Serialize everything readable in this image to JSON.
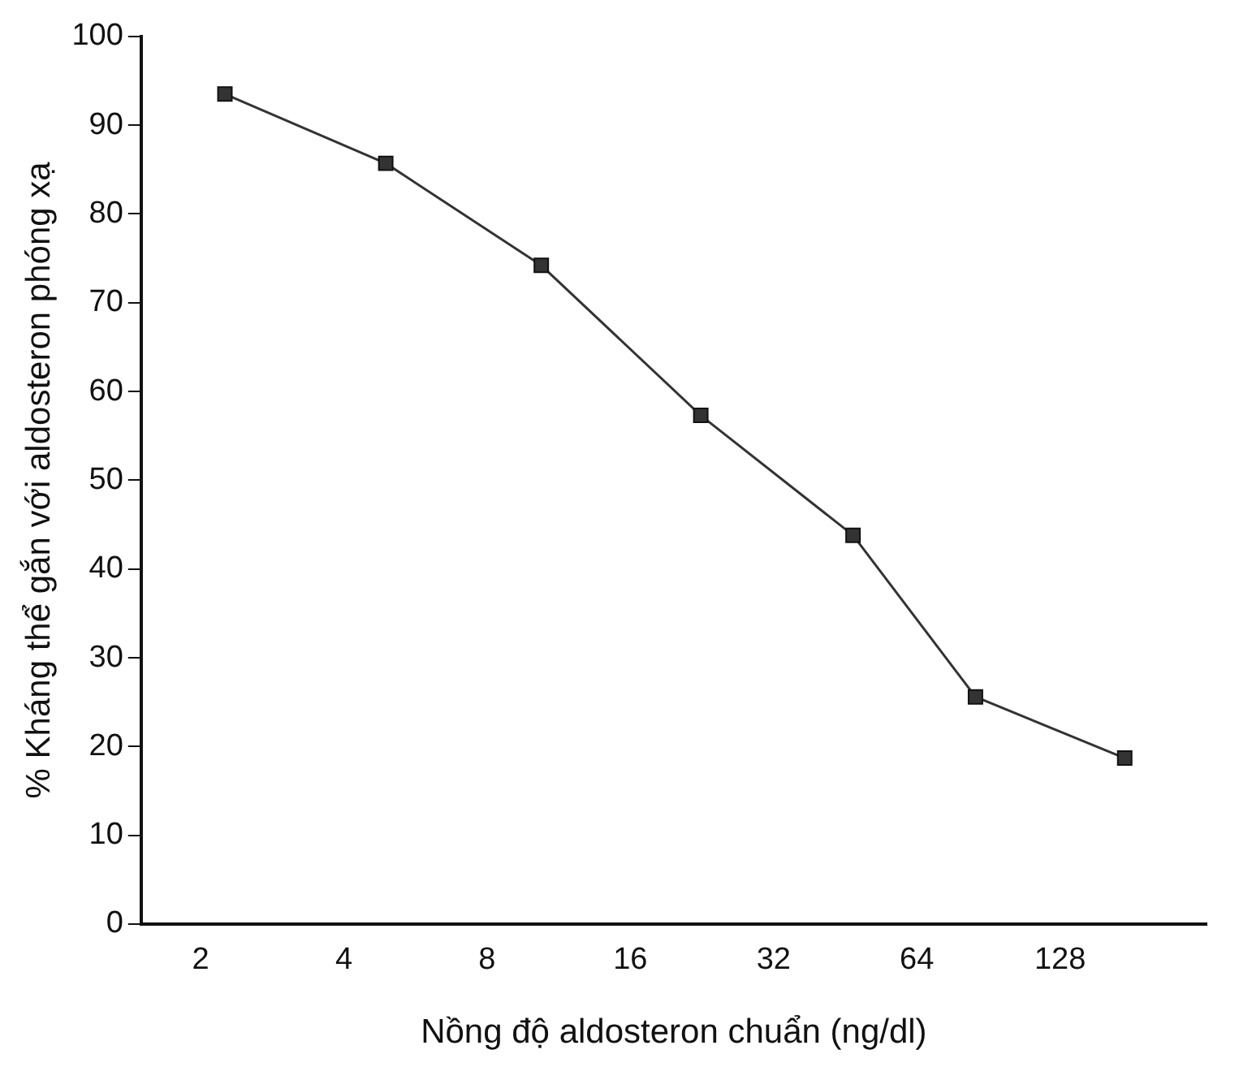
{
  "chart_data": {
    "type": "line",
    "xlabel": "Nồng độ aldosteron chuẩn (ng/dl)",
    "ylabel": "% Kháng thể gắn với aldosteron phóng xạ",
    "x": [
      2.25,
      4.9,
      10.4,
      22.5,
      47,
      85,
      175
    ],
    "series": [
      {
        "color": "#333333",
        "values": [
          93.5,
          85.7,
          74.2,
          57.3,
          43.8,
          25.6,
          18.7
        ]
      }
    ],
    "log": "x",
    "xlim": [
      1.5,
      260
    ],
    "xticks": [
      2,
      4,
      8,
      16,
      32,
      64,
      128
    ],
    "ylim": [
      0,
      100
    ],
    "yticks": [
      0,
      10,
      20,
      30,
      40,
      50,
      60,
      70,
      80,
      90,
      100
    ],
    "marker": "square",
    "line_style": "solid",
    "grid": false,
    "legend": false
  }
}
